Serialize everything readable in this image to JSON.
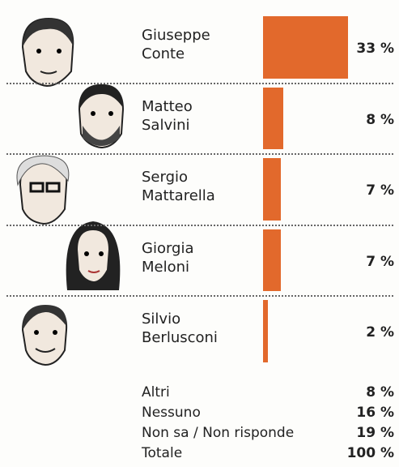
{
  "chart_data": {
    "type": "bar",
    "orientation": "horizontal",
    "categories": [
      "Giuseppe Conte",
      "Matteo Salvini",
      "Sergio Mattarella",
      "Giorgia Meloni",
      "Silvio Berlusconi"
    ],
    "values": [
      33,
      8,
      7,
      7,
      2
    ],
    "value_labels": [
      "33 %",
      "8 %",
      "7 %",
      "7 %",
      "2 %"
    ],
    "color": "#e2692c"
  },
  "others": {
    "rows": [
      [
        "Altri",
        "8 %"
      ],
      [
        "Nessuno",
        "16 %"
      ],
      [
        "Non sa / Non risponde",
        "19 %"
      ],
      [
        "Totale",
        "100 %"
      ]
    ]
  }
}
